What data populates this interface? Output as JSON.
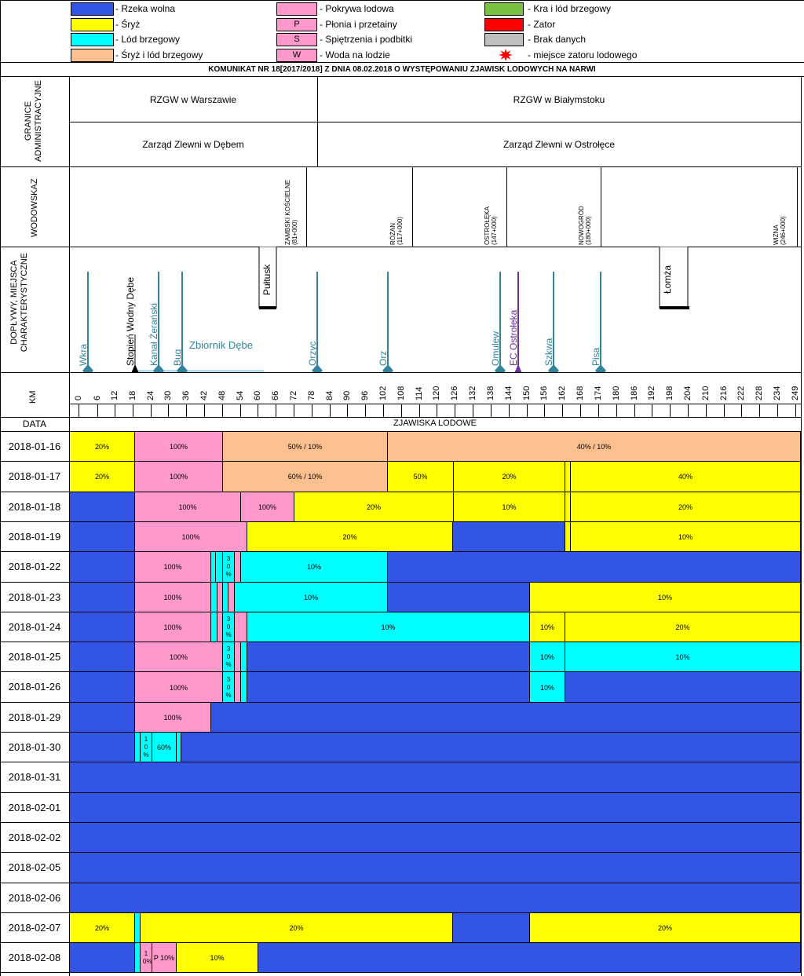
{
  "colors": {
    "rzeka_wolna": "#3355e6",
    "sryz": "#ffff00",
    "lod_brzegowy": "#00ffff",
    "sryz_lod": "#fac090",
    "pokrywa": "#ff99cc",
    "kra": "#7ac142",
    "zator": "#ff0000",
    "brak": "#bfbfbf",
    "river_line": "#31849b",
    "ec_ostroleka": "#7030a0"
  },
  "legend": {
    "col1": [
      {
        "label": "- Rzeka wolna",
        "color": "#3355e6",
        "code": ""
      },
      {
        "label": "- Śryż",
        "color": "#ffff00",
        "code": ""
      },
      {
        "label": "- Lód brzegowy",
        "color": "#00ffff",
        "code": ""
      },
      {
        "label": "- Śryż i lód brzegowy",
        "color": "#fac090",
        "code": ""
      }
    ],
    "col2": [
      {
        "label": "- Pokrywa lodowa",
        "color": "#ff99cc",
        "code": ""
      },
      {
        "label": "- Płonia i przetainy",
        "color": "#ff99cc",
        "code": "P"
      },
      {
        "label": "- Spiętrzenia i podbitki",
        "color": "#ff99cc",
        "code": "S"
      },
      {
        "label": "- Woda na lodzie",
        "color": "#ff99cc",
        "code": "W"
      }
    ],
    "col3": [
      {
        "label": "- Kra i lód brzegowy",
        "color": "#7ac142",
        "code": ""
      },
      {
        "label": "- Zator",
        "color": "#ff0000",
        "code": ""
      },
      {
        "label": "- Brak danych",
        "color": "#bfbfbf",
        "code": ""
      },
      {
        "label": "- miejsce zatoru lodowego",
        "color": "",
        "code": ""
      }
    ]
  },
  "title": "KOMUNIKAT NR 18[2017/2018] Z DNIA 08.02.2018 O WYSTĘPOWANIU ZJAWISK LODOWYCH NA NARWI",
  "section_labels": {
    "granice": "GRANICE ADMINISTRACYJNE",
    "wodowskaz": "WODOWSKAZ",
    "doplywy": "DOPŁYWY, MIEJSCA CHARAKTERYSTYCZNE",
    "km": "KM",
    "data": "DATA",
    "zjawiska": "ZJAWISKA LODOWE"
  },
  "admin": {
    "rzgw_w": "RZGW w Warszawie",
    "rzgw_b": "RZGW w Białymstoku",
    "zz_d": "Zarząd Zlewni w Dębem",
    "zz_o": "Zarząd Zlewni w Ostrołęce"
  },
  "gauges": [
    {
      "name": "ZAMBSKI KOŚCIELNE",
      "km": "(81+000)"
    },
    {
      "name": "RÓŻAN",
      "km": "(117+000)"
    },
    {
      "name": "OSTROŁĘKA",
      "km": "(147+000)"
    },
    {
      "name": "NOWOGRÓD",
      "km": "(180+000)"
    },
    {
      "name": "WIZNA",
      "km": "(246+000)"
    }
  ],
  "places": {
    "pultusk": "Pułtusk",
    "lomza": "Łomża",
    "stopien": "Stopień Wodny Dębe",
    "zbiornik": "Zbiornik Dębe",
    "ec": "EC Ostrołęka"
  },
  "tributaries": [
    "Wkra",
    "Kanał Żerański",
    "Bug",
    "Orzyc",
    "Orz",
    "Omulew",
    "Szkwa",
    "Pisa"
  ],
  "km_ticks": [
    "0",
    "6",
    "12",
    "18",
    "24",
    "30",
    "36",
    "42",
    "48",
    "54",
    "60",
    "66",
    "72",
    "78",
    "84",
    "90",
    "96",
    "102",
    "108",
    "114",
    "120",
    "126",
    "132",
    "138",
    "144",
    "150",
    "156",
    "162",
    "168",
    "174",
    "180",
    "186",
    "192",
    "198",
    "204",
    "210",
    "216",
    "222",
    "228",
    "234",
    "249"
  ],
  "rows": [
    {
      "date": "2018-01-16",
      "cells": [
        {
          "end": 172,
          "type": "sryz",
          "text": "20%"
        },
        {
          "end": 284,
          "type": "pokrywa",
          "text": "100%"
        },
        {
          "end": 494,
          "type": "sryz_lod",
          "text": "50% / 10%"
        },
        {
          "end": 1020,
          "type": "sryz_lod",
          "text": "40% / 10%"
        }
      ]
    },
    {
      "date": "2018-01-17",
      "cells": [
        {
          "end": 172,
          "type": "sryz",
          "text": "20%"
        },
        {
          "end": 284,
          "type": "pokrywa",
          "text": "100%"
        },
        {
          "end": 494,
          "type": "sryz_lod",
          "text": "60% / 10%"
        },
        {
          "end": 578,
          "type": "sryz",
          "text": "50%"
        },
        {
          "end": 720,
          "type": "sryz",
          "text": "20%"
        },
        {
          "end": 727,
          "type": "sryz",
          "text": ""
        },
        {
          "end": 1020,
          "type": "sryz",
          "text": "40%"
        }
      ]
    },
    {
      "date": "2018-01-18",
      "cells": [
        {
          "end": 172,
          "type": "rzeka_wolna",
          "text": ""
        },
        {
          "end": 307,
          "type": "pokrywa",
          "text": "100%"
        },
        {
          "end": 375,
          "type": "pokrywa",
          "text": "100%"
        },
        {
          "end": 578,
          "type": "sryz",
          "text": "20%"
        },
        {
          "end": 720,
          "type": "sryz",
          "text": "10%"
        },
        {
          "end": 727,
          "type": "sryz",
          "text": ""
        },
        {
          "end": 1020,
          "type": "sryz",
          "text": "20%"
        }
      ]
    },
    {
      "date": "2018-01-19",
      "cells": [
        {
          "end": 172,
          "type": "rzeka_wolna",
          "text": ""
        },
        {
          "end": 315,
          "type": "pokrywa",
          "text": "100%"
        },
        {
          "end": 577,
          "type": "sryz",
          "text": "20%"
        },
        {
          "end": 720,
          "type": "rzeka_wolna",
          "text": ""
        },
        {
          "end": 727,
          "type": "sryz",
          "text": ""
        },
        {
          "end": 1020,
          "type": "sryz",
          "text": "10%"
        }
      ]
    },
    {
      "date": "2018-01-22",
      "cells": [
        {
          "end": 172,
          "type": "rzeka_wolna",
          "text": ""
        },
        {
          "end": 269,
          "type": "pokrywa",
          "text": "100%"
        },
        {
          "end": 275,
          "type": "lod_brzegowy",
          "text": ""
        },
        {
          "end": 284,
          "type": "lod_brzegowy",
          "text": ""
        },
        {
          "end": 299,
          "type": "lod_brzegowy",
          "text": "30 %"
        },
        {
          "end": 307,
          "type": "pokrywa",
          "text": ""
        },
        {
          "end": 494,
          "type": "lod_brzegowy",
          "text": "10%"
        },
        {
          "end": 1020,
          "type": "rzeka_wolna",
          "text": ""
        }
      ]
    },
    {
      "date": "2018-01-23",
      "cells": [
        {
          "end": 172,
          "type": "rzeka_wolna",
          "text": ""
        },
        {
          "end": 269,
          "type": "pokrywa",
          "text": "100%"
        },
        {
          "end": 277,
          "type": "lod_brzegowy",
          "text": ""
        },
        {
          "end": 284,
          "type": "pokrywa",
          "text": ""
        },
        {
          "end": 291,
          "type": "lod_brzegowy",
          "text": ""
        },
        {
          "end": 299,
          "type": "pokrywa",
          "text": ""
        },
        {
          "end": 494,
          "type": "lod_brzegowy",
          "text": "10%"
        },
        {
          "end": 675,
          "type": "rzeka_wolna",
          "text": ""
        },
        {
          "end": 1020,
          "type": "sryz",
          "text": "10%"
        }
      ]
    },
    {
      "date": "2018-01-24",
      "cells": [
        {
          "end": 172,
          "type": "rzeka_wolna",
          "text": ""
        },
        {
          "end": 269,
          "type": "pokrywa",
          "text": "100%"
        },
        {
          "end": 277,
          "type": "lod_brzegowy",
          "text": ""
        },
        {
          "end": 284,
          "type": "pokrywa",
          "text": ""
        },
        {
          "end": 299,
          "type": "lod_brzegowy",
          "text": "30 %"
        },
        {
          "end": 315,
          "type": "pokrywa",
          "text": ""
        },
        {
          "end": 675,
          "type": "lod_brzegowy",
          "text": "10%"
        },
        {
          "end": 720,
          "type": "sryz",
          "text": "10%"
        },
        {
          "end": 1020,
          "type": "sryz",
          "text": "20%"
        }
      ]
    },
    {
      "date": "2018-01-25",
      "cells": [
        {
          "end": 172,
          "type": "rzeka_wolna",
          "text": ""
        },
        {
          "end": 284,
          "type": "pokrywa",
          "text": "100%"
        },
        {
          "end": 299,
          "type": "lod_brzegowy",
          "text": "30 %"
        },
        {
          "end": 307,
          "type": "pokrywa",
          "text": ""
        },
        {
          "end": 315,
          "type": "lod_brzegowy",
          "text": ""
        },
        {
          "end": 675,
          "type": "rzeka_wolna",
          "text": ""
        },
        {
          "end": 720,
          "type": "lod_brzegowy",
          "text": "10%"
        },
        {
          "end": 1020,
          "type": "lod_brzegowy",
          "text": "10%"
        }
      ]
    },
    {
      "date": "2018-01-26",
      "cells": [
        {
          "end": 172,
          "type": "rzeka_wolna",
          "text": ""
        },
        {
          "end": 284,
          "type": "pokrywa",
          "text": "100%"
        },
        {
          "end": 299,
          "type": "lod_brzegowy",
          "text": "30 %"
        },
        {
          "end": 307,
          "type": "pokrywa",
          "text": ""
        },
        {
          "end": 315,
          "type": "lod_brzegowy",
          "text": ""
        },
        {
          "end": 675,
          "type": "rzeka_wolna",
          "text": ""
        },
        {
          "end": 720,
          "type": "lod_brzegowy",
          "text": "10%"
        },
        {
          "end": 1020,
          "type": "rzeka_wolna",
          "text": ""
        }
      ]
    },
    {
      "date": "2018-01-29",
      "cells": [
        {
          "end": 172,
          "type": "rzeka_wolna",
          "text": ""
        },
        {
          "end": 269,
          "type": "pokrywa",
          "text": "100%"
        },
        {
          "end": 1020,
          "type": "rzeka_wolna",
          "text": ""
        }
      ]
    },
    {
      "date": "2018-01-30",
      "cells": [
        {
          "end": 172,
          "type": "rzeka_wolna",
          "text": ""
        },
        {
          "end": 179,
          "type": "lod_brzegowy",
          "text": ""
        },
        {
          "end": 194,
          "type": "lod_brzegowy",
          "text": "10 %"
        },
        {
          "end": 225,
          "type": "lod_brzegowy",
          "text": "60%"
        },
        {
          "end": 231,
          "type": "lod_brzegowy",
          "text": ""
        },
        {
          "end": 1020,
          "type": "rzeka_wolna",
          "text": ""
        }
      ]
    },
    {
      "date": "2018-01-31",
      "cells": [
        {
          "end": 1020,
          "type": "rzeka_wolna",
          "text": ""
        }
      ]
    },
    {
      "date": "2018-02-01",
      "cells": [
        {
          "end": 1020,
          "type": "rzeka_wolna",
          "text": ""
        }
      ]
    },
    {
      "date": "2018-02-02",
      "cells": [
        {
          "end": 1020,
          "type": "rzeka_wolna",
          "text": ""
        }
      ]
    },
    {
      "date": "2018-02-05",
      "cells": [
        {
          "end": 1020,
          "type": "rzeka_wolna",
          "text": ""
        }
      ]
    },
    {
      "date": "2018-02-06",
      "cells": [
        {
          "end": 1020,
          "type": "rzeka_wolna",
          "text": ""
        }
      ]
    },
    {
      "date": "2018-02-07",
      "cells": [
        {
          "end": 172,
          "type": "sryz",
          "text": "20%"
        },
        {
          "end": 179,
          "type": "lod_brzegowy",
          "text": ""
        },
        {
          "end": 577,
          "type": "sryz",
          "text": "20%"
        },
        {
          "end": 675,
          "type": "rzeka_wolna",
          "text": ""
        },
        {
          "end": 1020,
          "type": "sryz",
          "text": "20%"
        }
      ]
    },
    {
      "date": "2018-02-08",
      "cells": [
        {
          "end": 172,
          "type": "rzeka_wolna",
          "text": ""
        },
        {
          "end": 179,
          "type": "lod_brzegowy",
          "text": ""
        },
        {
          "end": 194,
          "type": "pokrywa",
          "text": "10%"
        },
        {
          "end": 225,
          "type": "pokrywa",
          "text": "P 10%"
        },
        {
          "end": 329,
          "type": "sryz",
          "text": "10%"
        },
        {
          "end": 1020,
          "type": "rzeka_wolna",
          "text": ""
        }
      ]
    }
  ]
}
